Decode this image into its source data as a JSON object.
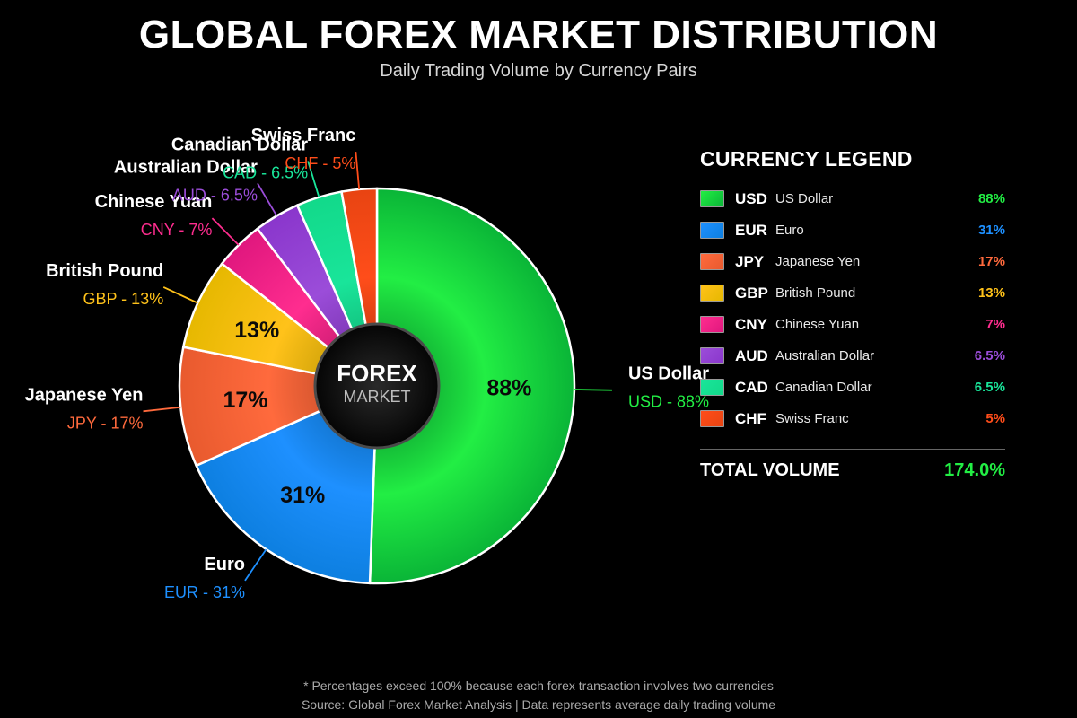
{
  "title": "GLOBAL FOREX MARKET DISTRIBUTION",
  "subtitle": "Daily Trading Volume by Currency Pairs",
  "center": {
    "line1": "FOREX",
    "line2": "MARKET"
  },
  "chart_data": {
    "type": "pie",
    "variant": "donut",
    "start_angle": "12 o'clock, clockwise",
    "categories": [
      "USD",
      "EUR",
      "JPY",
      "GBP",
      "CNY",
      "AUD",
      "CAD",
      "CHF"
    ],
    "values": [
      88,
      31,
      17,
      13,
      7,
      6.5,
      6.5,
      5
    ],
    "value_labels": [
      "88%",
      "31%",
      "17%",
      "13%",
      "7%",
      "6.5%",
      "6.5%",
      "5%"
    ],
    "slice_labels": [
      {
        "name": "US Dollar",
        "sub": "USD - 88%"
      },
      {
        "name": "Euro",
        "sub": "EUR - 31%"
      },
      {
        "name": "Japanese Yen",
        "sub": "JPY - 17%"
      },
      {
        "name": "British Pound",
        "sub": "GBP - 13%"
      },
      {
        "name": "Chinese Yuan",
        "sub": "CNY - 7%"
      },
      {
        "name": "Australian Dollar",
        "sub": "AUD - 6.5%"
      },
      {
        "name": "Canadian Dollar",
        "sub": "CAD - 6.5%"
      },
      {
        "name": "Swiss Franc",
        "sub": "CHF - 5%"
      }
    ],
    "colors": [
      "#0ab537",
      "#0d7fe0",
      "#e85a2e",
      "#e6b800",
      "#e0177e",
      "#8a36cc",
      "#12d98a",
      "#e84412"
    ],
    "label_colors": [
      "#22ee44",
      "#1e90ff",
      "#ff6a3d",
      "#ffc21a",
      "#ff2d8f",
      "#9b4dd9",
      "#19e59a",
      "#ff4d1a"
    ],
    "legend_placement": "right"
  },
  "legend": {
    "title": "CURRENCY LEGEND",
    "items": [
      {
        "code": "USD",
        "name": "US Dollar",
        "pct": "88%"
      },
      {
        "code": "EUR",
        "name": "Euro",
        "pct": "31%"
      },
      {
        "code": "JPY",
        "name": "Japanese Yen",
        "pct": "17%"
      },
      {
        "code": "GBP",
        "name": "British Pound",
        "pct": "13%"
      },
      {
        "code": "CNY",
        "name": "Chinese Yuan",
        "pct": "7%"
      },
      {
        "code": "AUD",
        "name": "Australian Dollar",
        "pct": "6.5%"
      },
      {
        "code": "CAD",
        "name": "Canadian Dollar",
        "pct": "6.5%"
      },
      {
        "code": "CHF",
        "name": "Swiss Franc",
        "pct": "5%"
      }
    ],
    "total_label": "TOTAL VOLUME",
    "total_value": "174.0%"
  },
  "footer": {
    "note": "* Percentages exceed 100% because each forex transaction involves two currencies",
    "source": "Source: Global Forex Market Analysis | Data represents average daily trading volume"
  }
}
